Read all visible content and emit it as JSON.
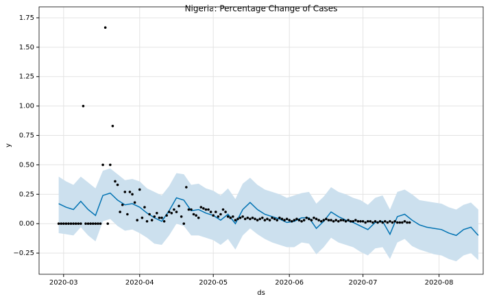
{
  "chart_data": {
    "type": "forecast",
    "title": "Nigeria: Percentage Change of Cases",
    "xlabel": "ds",
    "ylabel": "y",
    "xlim": [
      1,
      182
    ],
    "ylim": [
      -0.43,
      1.843
    ],
    "grid": true,
    "xticks": [
      {
        "value": 11,
        "label": "2020-03"
      },
      {
        "value": 42,
        "label": "2020-04"
      },
      {
        "value": 72,
        "label": "2020-05"
      },
      {
        "value": 103,
        "label": "2020-06"
      },
      {
        "value": 133,
        "label": "2020-07"
      },
      {
        "value": 164,
        "label": "2020-08"
      }
    ],
    "yticks": [
      {
        "value": -0.25,
        "label": "−0.25"
      },
      {
        "value": 0,
        "label": "0.00"
      },
      {
        "value": 0.25,
        "label": "0.25"
      },
      {
        "value": 0.5,
        "label": "0.50"
      },
      {
        "value": 0.75,
        "label": "0.75"
      },
      {
        "value": 1,
        "label": "1.00"
      },
      {
        "value": 1.25,
        "label": "1.25"
      },
      {
        "value": 1.5,
        "label": "1.50"
      },
      {
        "value": 1.75,
        "label": "1.75"
      }
    ],
    "points": {
      "color": "#000000",
      "x": [
        9,
        10,
        11,
        12,
        13,
        14,
        15,
        16,
        17,
        18,
        19,
        20,
        21,
        22,
        23,
        24,
        25,
        26,
        27,
        28,
        29,
        30,
        31,
        32,
        33,
        34,
        35,
        36,
        37,
        38,
        39,
        40,
        41,
        42,
        43,
        44,
        45,
        46,
        47,
        48,
        49,
        50,
        51,
        52,
        53,
        54,
        55,
        56,
        57,
        58,
        59,
        60,
        61,
        62,
        63,
        64,
        65,
        66,
        67,
        68,
        69,
        70,
        71,
        72,
        73,
        74,
        75,
        76,
        77,
        78,
        79,
        80,
        81,
        82,
        83,
        84,
        85,
        86,
        87,
        88,
        89,
        90,
        91,
        92,
        93,
        94,
        95,
        96,
        97,
        98,
        99,
        100,
        101,
        102,
        103,
        104,
        105,
        106,
        107,
        108,
        109,
        110,
        111,
        112,
        113,
        114,
        115,
        116,
        117,
        118,
        119,
        120,
        121,
        122,
        123,
        124,
        125,
        126,
        127,
        128,
        129,
        130,
        131,
        132,
        133,
        134,
        135,
        136,
        137,
        138,
        139,
        140,
        141,
        142,
        143,
        144,
        145,
        146,
        147,
        148,
        149,
        150,
        151,
        152
      ],
      "values": [
        0,
        0,
        0,
        0,
        0,
        0,
        0,
        0,
        0,
        0,
        1.0,
        0,
        0,
        0,
        0,
        0,
        0,
        0,
        0.5,
        1.667,
        0,
        0.5,
        0.83,
        0.36,
        0.33,
        0.1,
        0.16,
        0.27,
        0.08,
        0.27,
        0.25,
        0.18,
        0.03,
        0.29,
        0.05,
        0.14,
        0.02,
        0.08,
        0.03,
        0.06,
        0.09,
        0.05,
        0.05,
        0.02,
        0.07,
        0.1,
        0.09,
        0.12,
        0.1,
        0.15,
        0.06,
        0.0,
        0.31,
        0.12,
        0.12,
        0.08,
        0.07,
        0.05,
        0.14,
        0.13,
        0.12,
        0.12,
        0.1,
        0.07,
        0.1,
        0.06,
        0.08,
        0.12,
        0.1,
        0.06,
        0.05,
        0.06,
        0.03,
        0.04,
        0.05,
        0.06,
        0.04,
        0.05,
        0.04,
        0.05,
        0.04,
        0.03,
        0.04,
        0.05,
        0.03,
        0.04,
        0.03,
        0.05,
        0.04,
        0.03,
        0.05,
        0.04,
        0.03,
        0.04,
        0.03,
        0.02,
        0.03,
        0.04,
        0.03,
        0.02,
        0.03,
        0.05,
        0.04,
        0.03,
        0.05,
        0.04,
        0.03,
        0.02,
        0.03,
        0.04,
        0.03,
        0.03,
        0.02,
        0.03,
        0.02,
        0.03,
        0.03,
        0.02,
        0.03,
        0.02,
        0.02,
        0.03,
        0.02,
        0.02,
        0.02,
        0.01,
        0.02,
        0.02,
        0.01,
        0.02,
        0.01,
        0.02,
        0.01,
        0.02,
        0.01,
        0.02,
        0.01,
        0.02,
        0.01,
        0.01,
        0.01,
        0.02,
        0.01,
        0.01
      ]
    },
    "forecast": {
      "color": "#0072b2",
      "band_color": "#cce0ee",
      "x": [
        9,
        12,
        15,
        18,
        21,
        24,
        27,
        30,
        33,
        36,
        39,
        42,
        45,
        48,
        51,
        54,
        57,
        60,
        63,
        66,
        69,
        72,
        75,
        78,
        81,
        84,
        87,
        90,
        93,
        96,
        99,
        102,
        105,
        108,
        111,
        114,
        117,
        120,
        123,
        126,
        129,
        132,
        135,
        138,
        141,
        144,
        147,
        150,
        153,
        156,
        159,
        162,
        165,
        168,
        171,
        174,
        177,
        180
      ],
      "values": [
        0.17,
        0.14,
        0.12,
        0.19,
        0.12,
        0.07,
        0.24,
        0.26,
        0.2,
        0.16,
        0.17,
        0.14,
        0.09,
        0.05,
        0.02,
        0.11,
        0.22,
        0.2,
        0.11,
        0.12,
        0.09,
        0.07,
        0.03,
        0.08,
        0.0,
        0.12,
        0.18,
        0.12,
        0.08,
        0.06,
        0.04,
        0.01,
        0.02,
        0.05,
        0.05,
        -0.04,
        0.02,
        0.1,
        0.06,
        0.03,
        0.01,
        -0.02,
        -0.05,
        0.01,
        0.02,
        -0.09,
        0.06,
        0.08,
        0.03,
        -0.01,
        -0.03,
        -0.04,
        -0.05,
        -0.08,
        -0.1,
        -0.05,
        -0.03,
        -0.1
      ],
      "upper": [
        0.4,
        0.36,
        0.33,
        0.4,
        0.35,
        0.3,
        0.45,
        0.47,
        0.42,
        0.37,
        0.38,
        0.36,
        0.3,
        0.27,
        0.24,
        0.32,
        0.43,
        0.42,
        0.33,
        0.34,
        0.3,
        0.28,
        0.24,
        0.3,
        0.21,
        0.34,
        0.39,
        0.33,
        0.29,
        0.27,
        0.25,
        0.22,
        0.24,
        0.26,
        0.27,
        0.17,
        0.23,
        0.31,
        0.27,
        0.25,
        0.22,
        0.2,
        0.16,
        0.22,
        0.24,
        0.12,
        0.27,
        0.29,
        0.25,
        0.2,
        0.19,
        0.18,
        0.17,
        0.14,
        0.12,
        0.16,
        0.18,
        0.12
      ],
      "lower": [
        -0.08,
        -0.09,
        -0.1,
        -0.03,
        -0.1,
        -0.15,
        0.02,
        0.04,
        -0.02,
        -0.06,
        -0.05,
        -0.08,
        -0.12,
        -0.17,
        -0.18,
        -0.1,
        0.0,
        -0.02,
        -0.1,
        -0.1,
        -0.12,
        -0.14,
        -0.18,
        -0.13,
        -0.22,
        -0.1,
        -0.04,
        -0.09,
        -0.13,
        -0.16,
        -0.18,
        -0.2,
        -0.2,
        -0.16,
        -0.17,
        -0.26,
        -0.2,
        -0.12,
        -0.16,
        -0.18,
        -0.2,
        -0.24,
        -0.27,
        -0.21,
        -0.2,
        -0.3,
        -0.16,
        -0.13,
        -0.19,
        -0.22,
        -0.24,
        -0.26,
        -0.27,
        -0.3,
        -0.32,
        -0.27,
        -0.25,
        -0.31
      ]
    }
  }
}
